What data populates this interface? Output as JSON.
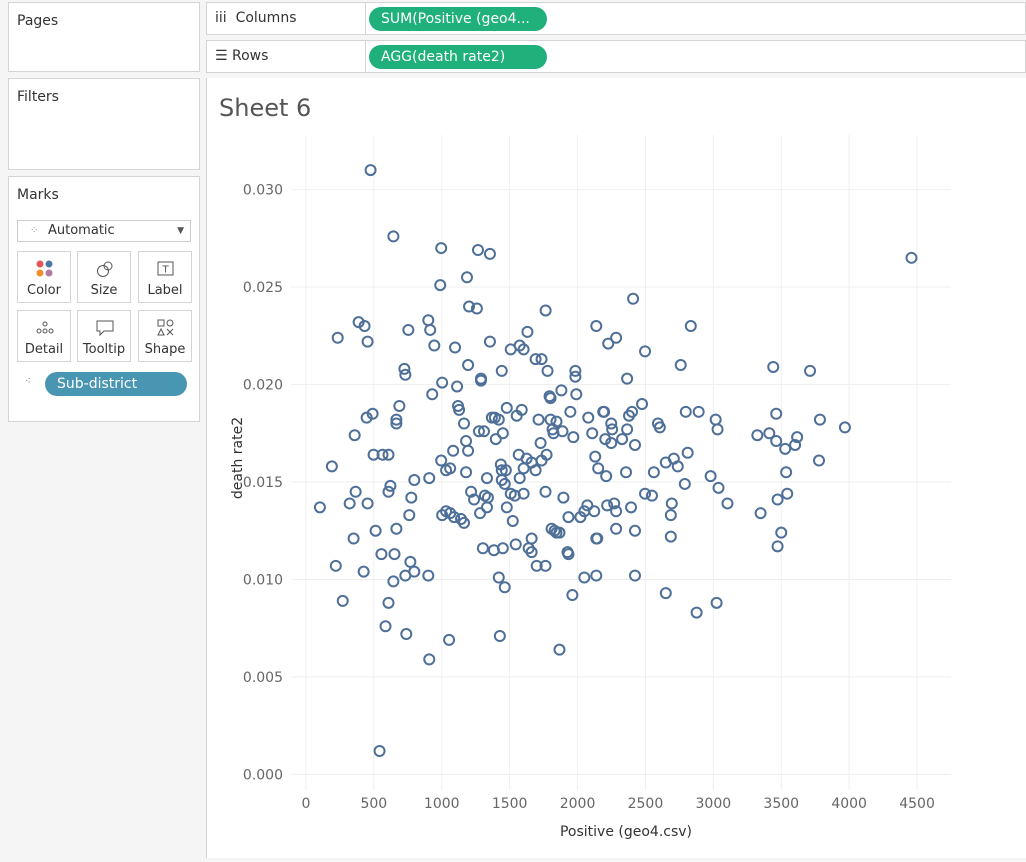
{
  "ui": {
    "pages": "Pages",
    "filters": "Filters",
    "marks": "Marks",
    "mark_type": "Automatic",
    "mark_buttons": [
      "Color",
      "Size",
      "Label",
      "Detail",
      "Tooltip",
      "Shape"
    ],
    "detail_pill": "Sub-district",
    "columns_label": "Columns",
    "columns_pill": "SUM(Positive (geo4...",
    "rows_label": "Rows",
    "rows_pill": "AGG(death rate2)"
  },
  "chart_data": {
    "type": "scatter",
    "title": "Sheet 6",
    "x_label": "Positive (geo4.csv)",
    "y_label": "death rate2",
    "color": "#4e6f98",
    "grid": true,
    "xlim": [
      -110,
      4750
    ],
    "ylim": [
      -0.0008,
      0.0328
    ],
    "xticks": [
      0,
      500,
      1000,
      1500,
      2000,
      2500,
      3000,
      3500,
      4000,
      4500
    ],
    "yticks": [
      {
        "value": 0,
        "label": "0.000"
      },
      {
        "value": 0.005,
        "label": "0.005"
      },
      {
        "value": 0.01,
        "label": "0.010"
      },
      {
        "value": 0.015,
        "label": "0.015"
      },
      {
        "value": 0.02,
        "label": "0.020"
      },
      {
        "value": 0.025,
        "label": "0.025"
      },
      {
        "value": 0.03,
        "label": "0.030"
      }
    ],
    "x": [
      476,
      644,
      4459,
      996,
      1267,
      1355,
      1186,
      989,
      2409,
      1201,
      1259,
      1765,
      388,
      901,
      432,
      915,
      2138,
      2834,
      754,
      1631,
      234,
      454,
      2284,
      945,
      1098,
      1355,
      1508,
      1574,
      1603,
      2226,
      2497,
      1691,
      1735,
      1194,
      1442,
      1779,
      1984,
      1984,
      2760,
      3441,
      3712,
      725,
      732,
      1289,
      1289,
      1003,
      2365,
      1113,
      930,
      1881,
      1794,
      1801,
      1991,
      2475,
      688,
      1120,
      1128,
      1479,
      1589,
      1552,
      1947,
      2189,
      2079,
      2196,
      2401,
      491,
      447,
      666,
      666,
      1369,
      1420,
      1713,
      1801,
      1845,
      1816,
      1823,
      1889,
      2248,
      2255,
      2365,
      2379,
      2592,
      2606,
      2797,
      2892,
      3017,
      3031,
      3463,
      3785,
      3969,
      359,
      1274,
      1311,
      1398,
      1179,
      1391,
      1164,
      1450,
      1728,
      1969,
      2108,
      2204,
      2248,
      2328,
      2423,
      3324,
      3412,
      3463,
      3529,
      3602,
      3617,
      498,
      564,
      608,
      191,
      1084,
      1194,
      996,
      1032,
      1179,
      1333,
      1435,
      1442,
      1472,
      1567,
      1625,
      1662,
      1691,
      1735,
      1772,
      1603,
      1574,
      2130,
      2152,
      2211,
      2357,
      2562,
      2650,
      2709,
      2738,
      2811,
      2980,
      2790,
      3038,
      3104,
      3544,
      3473,
      3348,
      3778,
      3536,
      366,
      322,
      103,
      622,
      608,
      454,
      798,
      776,
      761,
      908,
      1003,
      1032,
      1062,
      1091,
      1142,
      1164,
      1062,
      1216,
      1238,
      1282,
      1318,
      1340,
      1333,
      1442,
      1464,
      1479,
      1508,
      1523,
      1538,
      1603,
      1764,
      1896,
      1933,
      2050,
      2021,
      2072,
      2123,
      2218,
      2270,
      2284,
      2394,
      2497,
      2548,
      2687,
      2694,
      1809,
      1831,
      1845,
      1867,
      2138,
      2145,
      2284,
      2423,
      2687,
      3500,
      3473,
      513,
      351,
      666,
      1303,
      1384,
      1450,
      1545,
      1640,
      1662,
      1662,
      1926,
      1933,
      556,
      652,
      769,
      220,
      425,
      732,
      644,
      798,
      901,
      1420,
      1464,
      1699,
      1764,
      2050,
      2138,
      2423,
      2650,
      1962,
      3024,
      2877,
      271,
      608,
      586,
      739,
      1054,
      1428,
      1867,
      908,
      542
    ],
    "y": [
      0.031,
      0.0276,
      0.0265,
      0.027,
      0.0269,
      0.0267,
      0.0255,
      0.0251,
      0.0244,
      0.024,
      0.0239,
      0.0238,
      0.0232,
      0.0233,
      0.023,
      0.0228,
      0.023,
      0.023,
      0.0228,
      0.0227,
      0.0224,
      0.0222,
      0.0224,
      0.022,
      0.0219,
      0.0222,
      0.0218,
      0.022,
      0.0218,
      0.0221,
      0.0217,
      0.0213,
      0.0213,
      0.021,
      0.0207,
      0.0207,
      0.0207,
      0.0204,
      0.021,
      0.0209,
      0.0207,
      0.0208,
      0.0205,
      0.0203,
      0.0202,
      0.0201,
      0.0203,
      0.0199,
      0.0195,
      0.0197,
      0.0194,
      0.0193,
      0.0195,
      0.019,
      0.0189,
      0.0189,
      0.0187,
      0.0188,
      0.0187,
      0.0184,
      0.0186,
      0.0186,
      0.0183,
      0.0186,
      0.0186,
      0.0185,
      0.0183,
      0.0182,
      0.018,
      0.0183,
      0.0182,
      0.0182,
      0.0182,
      0.0181,
      0.0177,
      0.0175,
      0.0176,
      0.018,
      0.0177,
      0.0177,
      0.0184,
      0.018,
      0.0178,
      0.0186,
      0.0186,
      0.0182,
      0.0177,
      0.0185,
      0.0182,
      0.0178,
      0.0174,
      0.0176,
      0.0176,
      0.0172,
      0.0171,
      0.0183,
      0.018,
      0.0175,
      0.017,
      0.0173,
      0.0175,
      0.0172,
      0.017,
      0.0172,
      0.0169,
      0.0174,
      0.0175,
      0.0171,
      0.0167,
      0.0169,
      0.0173,
      0.0164,
      0.0164,
      0.0164,
      0.0158,
      0.0166,
      0.0166,
      0.0161,
      0.0156,
      0.0155,
      0.0152,
      0.0159,
      0.0156,
      0.0156,
      0.0164,
      0.0162,
      0.016,
      0.0156,
      0.0161,
      0.0164,
      0.0157,
      0.0152,
      0.0163,
      0.0157,
      0.0153,
      0.0155,
      0.0155,
      0.016,
      0.0162,
      0.0158,
      0.0165,
      0.0153,
      0.0149,
      0.0147,
      0.0139,
      0.0144,
      0.0141,
      0.0134,
      0.0161,
      0.0155,
      0.0145,
      0.0139,
      0.0137,
      0.0148,
      0.0145,
      0.0139,
      0.0151,
      0.0142,
      0.0133,
      0.0152,
      0.0133,
      0.0135,
      0.0134,
      0.0132,
      0.0131,
      0.0129,
      0.0157,
      0.0145,
      0.0141,
      0.0134,
      0.0143,
      0.0142,
      0.0137,
      0.0151,
      0.0149,
      0.0137,
      0.0144,
      0.013,
      0.0143,
      0.0144,
      0.0145,
      0.0142,
      0.0132,
      0.0135,
      0.0132,
      0.0138,
      0.0135,
      0.0138,
      0.0139,
      0.0135,
      0.0137,
      0.0144,
      0.0143,
      0.0133,
      0.0139,
      0.0126,
      0.0125,
      0.0124,
      0.0124,
      0.0121,
      0.0121,
      0.0126,
      0.0125,
      0.0122,
      0.0124,
      0.0117,
      0.0125,
      0.0121,
      0.0126,
      0.0116,
      0.0115,
      0.0116,
      0.0118,
      0.0116,
      0.0121,
      0.0114,
      0.0114,
      0.0113,
      0.0113,
      0.0113,
      0.0109,
      0.0107,
      0.0104,
      0.0102,
      0.0099,
      0.0104,
      0.0102,
      0.0101,
      0.0096,
      0.0107,
      0.0107,
      0.0101,
      0.0102,
      0.0102,
      0.0093,
      0.0092,
      0.0088,
      0.0083,
      0.0089,
      0.0088,
      0.0076,
      0.0072,
      0.0069,
      0.0071,
      0.0064,
      0.0059,
      0.0012
    ]
  }
}
